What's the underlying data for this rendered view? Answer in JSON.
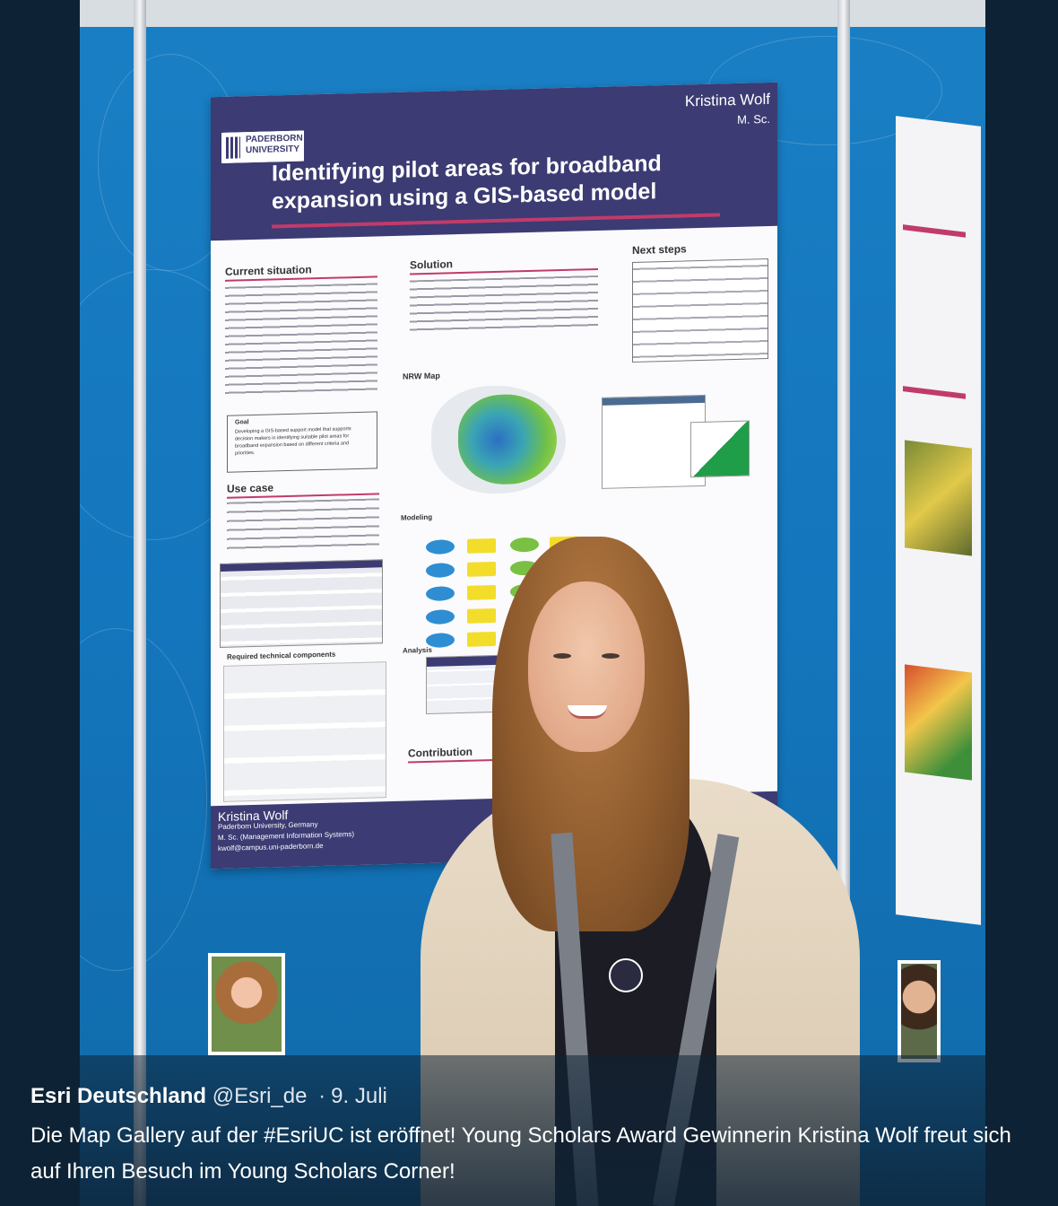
{
  "poster": {
    "university": "PADERBORN UNIVERSITY",
    "author": "Kristina Wolf",
    "degree": "M. Sc.",
    "title": "Identifying pilot areas for broadband expansion using a GIS-based model",
    "sections": {
      "current_situation": "Current situation",
      "solution": "Solution",
      "next_steps": "Next steps",
      "nrw_map": "NRW Map",
      "goal": "Goal",
      "use_case": "Use case",
      "modeling": "Modeling",
      "analysis": "Analysis",
      "required_components": "Required technical components",
      "contribution": "Contribution"
    },
    "goal_text": "Developing a GIS-based support model that supports decision makers in identifying suitable pilot areas for broadband expansion based on different criteria and priorities.",
    "footer": {
      "name": "Kristina Wolf",
      "line1": "Paderborn University, Germany",
      "line2": "M. Sc. (Management Information Systems)",
      "email": "kwolf@campus.uni-paderborn.de"
    }
  },
  "caption": {
    "account_name": "Esri Deutschland",
    "handle": "@Esri_de",
    "separator": "·",
    "date": "9. Juli",
    "text": "Die Map Gallery auf der #EsriUC ist eröffnet! Young Scholars Award Gewinnerin Kristina Wolf freut sich auf Ihren Besuch im Young Scholars Corner!"
  }
}
